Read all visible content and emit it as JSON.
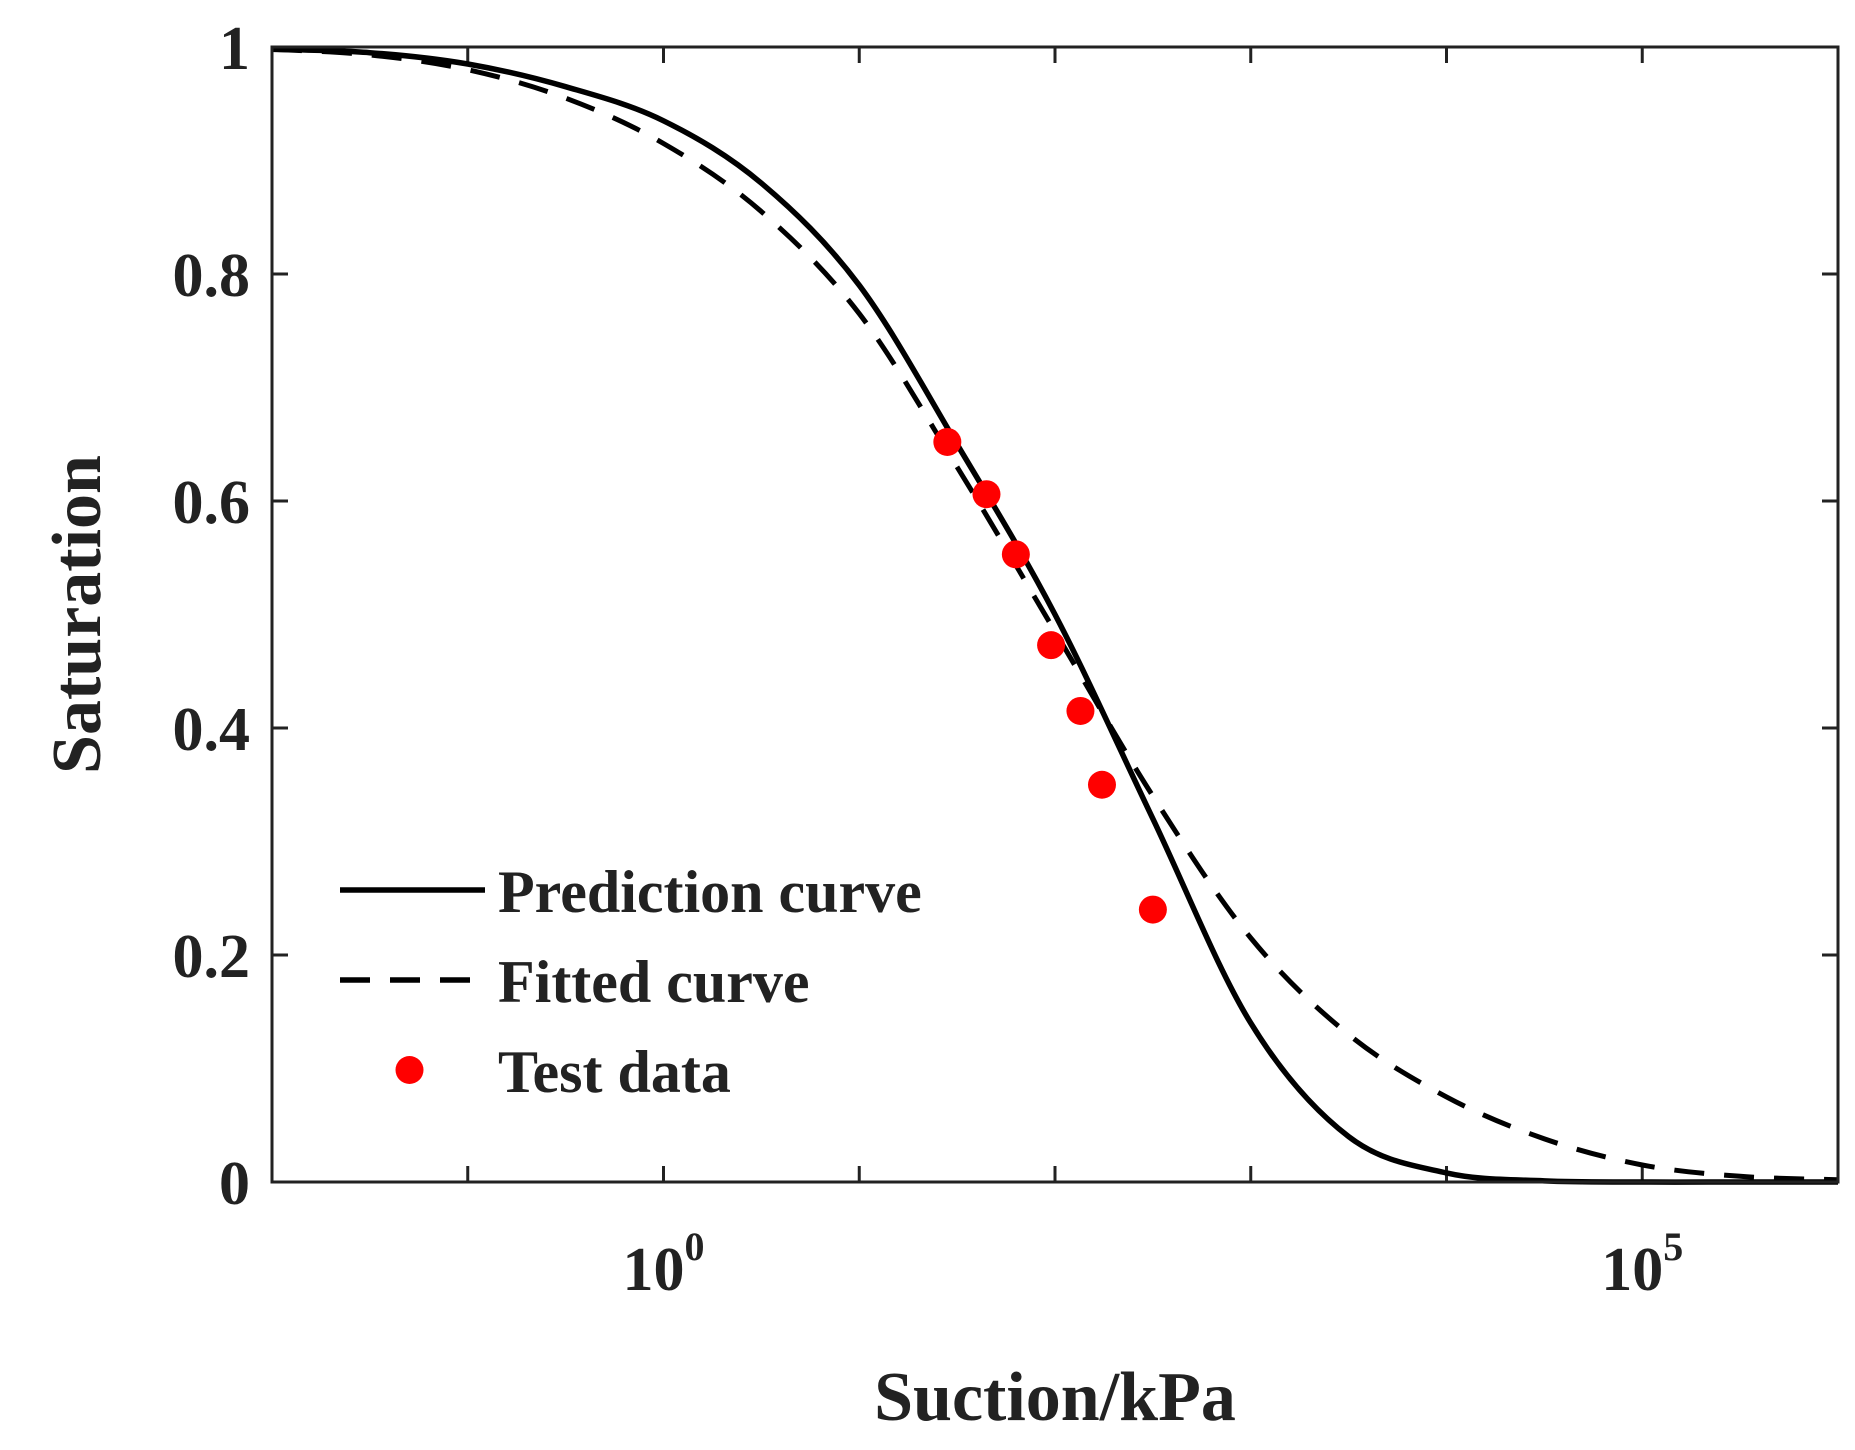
{
  "chart_data": {
    "type": "line",
    "title": "",
    "xlabel": "Suction/kPa",
    "ylabel": "Saturation",
    "x_scale": "log",
    "xlim_log10": [
      -2,
      6
    ],
    "ylim": [
      0,
      1
    ],
    "xticks": [
      {
        "log10": 0,
        "base": "10",
        "exp": "0"
      },
      {
        "log10": 5,
        "base": "10",
        "exp": "5"
      }
    ],
    "yticks": [
      {
        "value": 0,
        "label": "0"
      },
      {
        "value": 0.2,
        "label": "0.2"
      },
      {
        "value": 0.4,
        "label": "0.4"
      },
      {
        "value": 0.6,
        "label": "0.6"
      },
      {
        "value": 0.8,
        "label": "0.8"
      },
      {
        "value": 1,
        "label": "1"
      }
    ],
    "legend_position": "bottom-left",
    "series": [
      {
        "name": "Prediction curve",
        "style": "solid",
        "color": "#000000",
        "x_log10": [
          -2,
          -1.5,
          -1,
          -0.5,
          0,
          0.5,
          1,
          1.5,
          2,
          2.5,
          3,
          3.5,
          4,
          4.5,
          5,
          5.5,
          6
        ],
        "y": [
          0.998,
          0.995,
          0.985,
          0.965,
          0.935,
          0.88,
          0.79,
          0.65,
          0.5,
          0.32,
          0.14,
          0.04,
          0.008,
          0.001,
          0,
          0,
          0
        ]
      },
      {
        "name": "Fitted curve",
        "style": "dashed",
        "color": "#000000",
        "x_log10": [
          -2,
          -1.5,
          -1,
          -0.5,
          0,
          0.5,
          1,
          1.5,
          2,
          2.5,
          3,
          3.5,
          4,
          4.5,
          5,
          5.5,
          6
        ],
        "y": [
          0.998,
          0.993,
          0.98,
          0.955,
          0.915,
          0.855,
          0.765,
          0.63,
          0.485,
          0.34,
          0.215,
          0.13,
          0.075,
          0.038,
          0.015,
          0.005,
          0.002
        ]
      },
      {
        "name": "Test data",
        "style": "markers",
        "color": "#ff0000",
        "x_log10": [
          1.45,
          1.65,
          1.8,
          1.98,
          2.13,
          2.24,
          2.5
        ],
        "y": [
          0.652,
          0.606,
          0.553,
          0.473,
          0.415,
          0.35,
          0.24
        ]
      }
    ]
  }
}
